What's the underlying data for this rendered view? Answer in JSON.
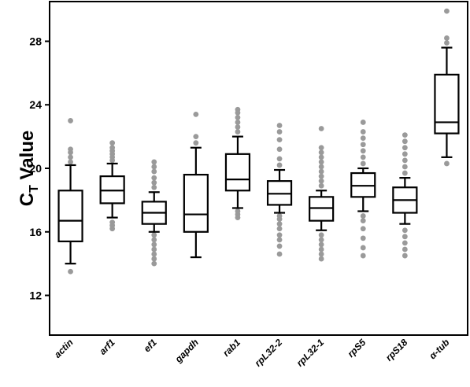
{
  "chart_data": {
    "type": "box",
    "title": "",
    "xlabel": "",
    "ylabel": {
      "main": "C",
      "subscript": "T",
      "rest": " Value"
    },
    "ylim": [
      9.5,
      30.5
    ],
    "yticks": [
      12,
      16,
      20,
      24,
      28
    ],
    "grid": false,
    "legend": "none",
    "colors": {
      "box_edge": "#000000",
      "outlier": "#9a9a9a"
    },
    "categories": [
      "actin",
      "arf1",
      "ef1",
      "gapdh",
      "rab1",
      "rpL32-2",
      "rpL32-1",
      "rpS5",
      "rpS18",
      "α-tub"
    ],
    "boxes": [
      {
        "min": 14.0,
        "q1": 15.4,
        "median": 16.7,
        "q3": 18.6,
        "max": 20.2,
        "outliers": [
          13.5,
          20.4,
          20.7,
          21.0,
          21.2,
          23.0
        ]
      },
      {
        "min": 16.9,
        "q1": 17.8,
        "median": 18.6,
        "q3": 19.5,
        "max": 20.3,
        "outliers": [
          16.2,
          16.4,
          16.6,
          20.5,
          20.7,
          20.9,
          21.1,
          21.3,
          21.6
        ]
      },
      {
        "min": 16.0,
        "q1": 16.5,
        "median": 17.2,
        "q3": 17.9,
        "max": 18.5,
        "outliers": [
          14.0,
          14.3,
          14.6,
          14.9,
          15.2,
          15.5,
          15.8,
          18.8,
          19.1,
          19.4,
          19.8,
          20.1,
          20.4
        ]
      },
      {
        "min": 14.4,
        "q1": 16.0,
        "median": 17.1,
        "q3": 19.6,
        "max": 21.3,
        "outliers": [
          21.6,
          22.0,
          23.4
        ]
      },
      {
        "min": 17.5,
        "q1": 18.6,
        "median": 19.3,
        "q3": 20.9,
        "max": 22.0,
        "outliers": [
          16.9,
          17.1,
          17.3,
          22.3,
          22.6,
          22.9,
          23.2,
          23.5,
          23.7
        ]
      },
      {
        "min": 17.2,
        "q1": 17.7,
        "median": 18.4,
        "q3": 19.2,
        "max": 19.9,
        "outliers": [
          14.6,
          15.1,
          15.5,
          15.8,
          16.2,
          16.5,
          16.8,
          17.0,
          20.2,
          20.6,
          21.2,
          21.8,
          22.3,
          22.7
        ]
      },
      {
        "min": 16.1,
        "q1": 16.7,
        "median": 17.5,
        "q3": 18.2,
        "max": 18.6,
        "outliers": [
          14.3,
          14.6,
          14.9,
          15.2,
          15.5,
          15.8,
          18.9,
          19.2,
          19.5,
          19.8,
          20.1,
          20.4,
          20.7,
          21.0,
          21.3,
          22.5
        ]
      },
      {
        "min": 17.3,
        "q1": 18.2,
        "median": 18.9,
        "q3": 19.7,
        "max": 20.0,
        "outliers": [
          14.5,
          15.0,
          15.6,
          16.2,
          16.7,
          17.0,
          20.3,
          20.7,
          21.1,
          21.5,
          21.9,
          22.3,
          22.9
        ]
      },
      {
        "min": 16.5,
        "q1": 17.2,
        "median": 18.0,
        "q3": 18.8,
        "max": 19.4,
        "outliers": [
          14.5,
          14.9,
          15.3,
          15.7,
          16.1,
          19.7,
          20.1,
          20.5,
          20.9,
          21.3,
          21.7,
          22.1
        ]
      },
      {
        "min": 20.7,
        "q1": 22.2,
        "median": 22.9,
        "q3": 25.9,
        "max": 27.6,
        "outliers": [
          20.3,
          27.9,
          28.2,
          29.9
        ]
      }
    ]
  }
}
